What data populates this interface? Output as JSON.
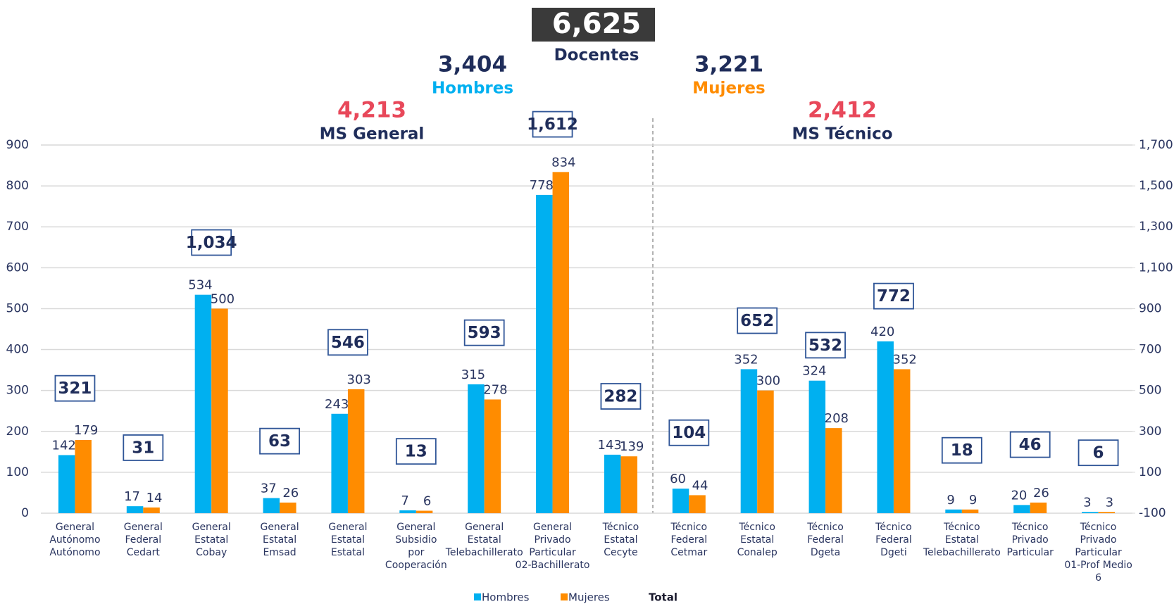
{
  "chart_data": {
    "type": "bar",
    "annotations": {
      "total": "6,625",
      "total_label": "Docentes",
      "men": "3,404",
      "men_label": "Hombres",
      "women": "3,221",
      "women_label": "Mujeres",
      "general": "4,213",
      "general_label": "MS General",
      "tecnico": "2,412",
      "tecnico_label": "MS Técnico"
    },
    "categories": [
      [
        "General",
        "Autónomo",
        "Autónomo"
      ],
      [
        "General",
        "Federal",
        "Cedart"
      ],
      [
        "General",
        "Estatal",
        "Cobay"
      ],
      [
        "General",
        "Estatal",
        "Emsad"
      ],
      [
        "General",
        "Estatal",
        "Estatal"
      ],
      [
        "General",
        "Subsidio",
        "por",
        "Cooperación"
      ],
      [
        "General",
        "Estatal",
        "Telebachillerato"
      ],
      [
        "General",
        "Privado",
        "Particular",
        "02-Bachillerato"
      ],
      [
        "Técnico",
        "Estatal",
        "Cecyte"
      ],
      [
        "Técnico",
        "Federal",
        "Cetmar"
      ],
      [
        "Técnico",
        "Estatal",
        "Conalep"
      ],
      [
        "Técnico",
        "Federal",
        "Dgeta"
      ],
      [
        "Técnico",
        "Federal",
        "Dgeti"
      ],
      [
        "Técnico",
        "Estatal",
        "Telebachillerato"
      ],
      [
        "Técnico",
        "Privado",
        "Particular"
      ],
      [
        "Técnico",
        "Privado",
        "Particular",
        "01-Prof Medio",
        "6"
      ]
    ],
    "series": [
      {
        "name": "Hombres",
        "color": "#00b0f0",
        "values": [
          142,
          17,
          534,
          37,
          243,
          7,
          315,
          778,
          143,
          60,
          352,
          324,
          420,
          9,
          20,
          3
        ]
      },
      {
        "name": "Mujeres",
        "color": "#ff8c00",
        "values": [
          179,
          14,
          500,
          26,
          303,
          6,
          278,
          834,
          139,
          44,
          300,
          208,
          352,
          9,
          26,
          3
        ]
      },
      {
        "name": "Total",
        "color": "#2f5597",
        "axis": "y2",
        "values": [
          321,
          31,
          1034,
          63,
          546,
          13,
          593,
          1612,
          282,
          104,
          652,
          532,
          772,
          18,
          46,
          6
        ],
        "value_labels": [
          "321",
          "31",
          "1,034",
          "63",
          "546",
          "13",
          "593",
          "1,612",
          "282",
          "104",
          "652",
          "532",
          "772",
          "18",
          "46",
          "6"
        ]
      }
    ],
    "ylim": [
      0,
      900
    ],
    "yticks": [
      0,
      100,
      200,
      300,
      400,
      500,
      600,
      700,
      800,
      900
    ],
    "y2lim": [
      -100,
      1700
    ],
    "y2ticks": [
      -100,
      100,
      300,
      500,
      700,
      900,
      {
        "value": 1100,
        "label": "1,100"
      },
      {
        "value": 1300,
        "label": "1,300"
      },
      {
        "value": 1500,
        "label": "1,500"
      },
      {
        "value": 1700,
        "label": "1,700"
      }
    ],
    "grid": true,
    "legend": "bottom"
  }
}
